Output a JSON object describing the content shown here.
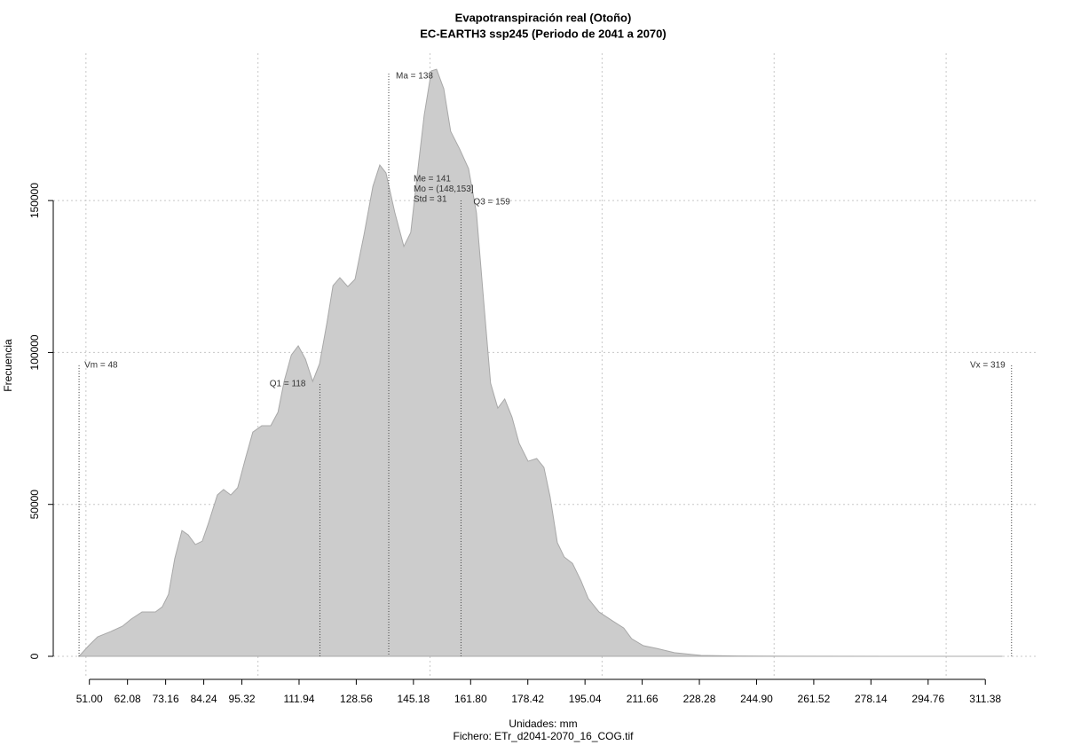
{
  "chart_data": {
    "type": "area",
    "title": "Evapotranspiración real (Otoño)",
    "subtitle": "EC-EARTH3 ssp245 (Periodo de 2041 a 2070)",
    "xlabel": "Unidades: mm",
    "caption": "Fichero: ETr_d2041-2070_16_COG.tif",
    "ylabel": "Frecuencia",
    "color": "#cccccc",
    "line_color": "#a8a8a8",
    "grid": true,
    "x": [
      48,
      50.8,
      53.4,
      57.3,
      60.6,
      63.2,
      66.3,
      70.2,
      72.2,
      74.0,
      75.8,
      77.9,
      79.7,
      81.8,
      83.8,
      85.6,
      88.2,
      90.0,
      92.1,
      94.1,
      96.5,
      98.5,
      101.1,
      103.7,
      105.8,
      107.6,
      109.7,
      111.7,
      113.8,
      115.9,
      117.9,
      120.0,
      121.8,
      123.8,
      126.1,
      128.2,
      130.8,
      133.4,
      135.4,
      137.2,
      139.8,
      142.4,
      144.4,
      146.2,
      148.3,
      150.4,
      151.9,
      154.0,
      156.0,
      158.6,
      161.2,
      163.5,
      165.6,
      167.6,
      169.7,
      171.7,
      173.8,
      175.9,
      178.5,
      181.0,
      183.1,
      184.9,
      187.0,
      189.0,
      191.4,
      193.9,
      196.0,
      199.1,
      203.0,
      206.3,
      208.6,
      212.0,
      215.9,
      221.0,
      228.8,
      239.1,
      257.1,
      282.9,
      316.4
    ],
    "values": [
      0,
      3500,
      6400,
      8200,
      9900,
      12300,
      14600,
      14600,
      16300,
      20400,
      32100,
      41400,
      40000,
      36800,
      37900,
      43800,
      53100,
      54900,
      53100,
      55500,
      65700,
      73800,
      75900,
      75900,
      80300,
      90500,
      99200,
      102200,
      97800,
      90500,
      96300,
      109500,
      122000,
      124600,
      121700,
      124100,
      138700,
      154700,
      161700,
      159100,
      145900,
      134900,
      139500,
      157600,
      178100,
      192700,
      193200,
      186800,
      172800,
      167000,
      160500,
      145900,
      116800,
      89900,
      81700,
      84700,
      78800,
      70100,
      64200,
      65100,
      62200,
      52500,
      37400,
      32700,
      30600,
      24800,
      19000,
      14600,
      11700,
      9300,
      5800,
      3500,
      2600,
      1200,
      300,
      100,
      30,
      10,
      0
    ],
    "xlim": [
      40.5,
      326.8
    ],
    "ylim": [
      -7300,
      198500
    ],
    "xticks": [
      {
        "value": 51,
        "label": "51.00"
      },
      {
        "value": 62.08,
        "label": "62.08"
      },
      {
        "value": 73.16,
        "label": "73.16"
      },
      {
        "value": 84.24,
        "label": "84.24"
      },
      {
        "value": 95.32,
        "label": "95.32"
      },
      {
        "value": 111.94,
        "label": "111.94"
      },
      {
        "value": 128.56,
        "label": "128.56"
      },
      {
        "value": 145.18,
        "label": "145.18"
      },
      {
        "value": 161.8,
        "label": "161.80"
      },
      {
        "value": 178.42,
        "label": "178.42"
      },
      {
        "value": 195.04,
        "label": "195.04"
      },
      {
        "value": 211.66,
        "label": "211.66"
      },
      {
        "value": 228.28,
        "label": "228.28"
      },
      {
        "value": 244.9,
        "label": "244.90"
      },
      {
        "value": 261.52,
        "label": "261.52"
      },
      {
        "value": 278.14,
        "label": "278.14"
      },
      {
        "value": 294.76,
        "label": "294.76"
      },
      {
        "value": 311.38,
        "label": "311.38"
      }
    ],
    "xgrid": [
      50,
      100,
      150,
      200,
      250,
      300
    ],
    "yticks": [
      0,
      50000,
      100000,
      150000
    ],
    "markers": [
      {
        "label": "Vm = 48",
        "value": 48
      },
      {
        "label": "Q1 = 118",
        "value": 118
      },
      {
        "label": "Ma = 138",
        "value": 138
      },
      {
        "label": "Q3 = 159",
        "value": 159
      },
      {
        "label": "Vx = 319",
        "value": 319
      }
    ],
    "stats": [
      "Me = 141",
      "Mo = (148,153]",
      "Std = 31"
    ]
  }
}
